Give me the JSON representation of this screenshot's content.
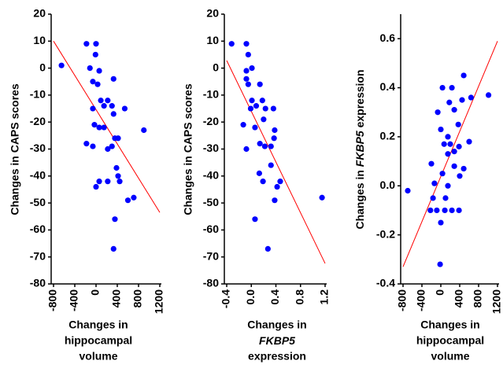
{
  "chart_data": [
    {
      "type": "scatter",
      "ylabel": "Changes in CAPS scores",
      "xlabel": [
        "Changes in",
        "hippocampal",
        "volume"
      ],
      "color": "#0000ff",
      "x": [
        -650,
        -180,
        0,
        -10,
        -115,
        60,
        -60,
        30,
        90,
        220,
        150,
        -60,
        300,
        -30,
        60,
        150,
        330,
        540,
        330,
        900,
        355,
        415,
        220,
        300,
        -180,
        -60,
        385,
        415,
        445,
        60,
        220,
        0,
        710,
        600,
        355,
        330
      ],
      "y": [
        1,
        9,
        9,
        5,
        0,
        -1,
        -5,
        -6,
        -12,
        -12,
        -14,
        -15,
        -14,
        -21,
        -22,
        -22,
        -17,
        -15,
        -4,
        -23,
        -26,
        -26,
        -30,
        -29,
        -28,
        -29,
        -37,
        -40,
        -42,
        -42,
        -42,
        -44,
        -48,
        -49,
        -56,
        -67
      ],
      "xlim": [
        -800,
        1200
      ],
      "xticks": [
        -800,
        -400,
        0,
        400,
        800,
        1200
      ],
      "ylim": [
        -80,
        20
      ],
      "yticks": [
        20,
        10,
        0,
        -10,
        -20,
        -30,
        -40,
        -50,
        -60,
        -70,
        -80
      ],
      "fit_line": {
        "x": [
          -800,
          1200
        ],
        "y": [
          10,
          -53.5
        ],
        "color": "#ff0000"
      }
    },
    {
      "type": "scatter",
      "ylabel": "Changes in CAPS scores",
      "xlabel": [
        "Changes in",
        "FKBP5",
        "expression"
      ],
      "italic": "FKBP5",
      "color": "#0000ff",
      "x": [
        -0.32,
        -0.08,
        -0.05,
        -0.08,
        0.01,
        -0.08,
        -0.05,
        0.14,
        0.01,
        0.18,
        0.08,
        0.23,
        -0.01,
        0.36,
        -0.13,
        0.06,
        0.2,
        0.38,
        0.37,
        0.14,
        0.22,
        0.32,
        -0.08,
        0.32,
        0.13,
        0.19,
        0.47,
        0.42,
        0.38,
        0.06,
        0.27,
        1.15
      ],
      "y": [
        9,
        9,
        5,
        -1,
        0,
        -4,
        -6,
        -6,
        -12,
        -12,
        -14,
        -15,
        -15,
        -15,
        -21,
        -22,
        -19,
        -23,
        -26,
        -28,
        -29,
        -29,
        -30,
        -36,
        -39,
        -42,
        -42,
        -44,
        -49,
        -56,
        -67,
        -48
      ],
      "xlim": [
        -0.4,
        1.2
      ],
      "xticks": [
        -0.4,
        {
          "value": 0,
          "label": "0.0"
        },
        0.4,
        0.8,
        1.2
      ],
      "ylim": [
        -80,
        20
      ],
      "yticks": [
        20,
        10,
        0,
        -10,
        -20,
        -30,
        -40,
        -50,
        -60,
        -70,
        -80
      ],
      "fit_line": {
        "x": [
          -0.4,
          1.2
        ],
        "y": [
          2.8,
          -72.4
        ],
        "color": "#ff0000"
      }
    },
    {
      "type": "scatter",
      "ylabel": "Changes in FKBP5 expression",
      "xlabel": [
        "Changes in",
        "hippocampal",
        "volume"
      ],
      "italic": "FKBP5",
      "color": "#0000ff",
      "x": [
        -700,
        -220,
        -85,
        85,
        235,
        385,
        0,
        -15,
        -165,
        100,
        150,
        -135,
        400,
        485,
        -200,
        35,
        285,
        70,
        200,
        150,
        385,
        285,
        600,
        0,
        150,
        370,
        285,
        -65,
        180,
        35,
        235,
        450,
        485,
        640,
        1010
      ],
      "y": [
        -0.02,
        -0.1,
        -0.1,
        -0.1,
        -0.1,
        -0.1,
        -0.15,
        -0.32,
        -0.05,
        -0.05,
        0,
        0.01,
        0.04,
        0.07,
        0.09,
        0.05,
        0.08,
        0.17,
        0.17,
        0.13,
        0.16,
        0.14,
        0.18,
        0.23,
        0.2,
        0.25,
        0.31,
        0.3,
        0.34,
        0.4,
        0.4,
        0.35,
        0.45,
        0.36,
        0.37
      ],
      "xlim": [
        -800,
        1200
      ],
      "xticks": [
        -800,
        -400,
        0,
        400,
        800,
        1200
      ],
      "ylim": [
        -0.4,
        0.7
      ],
      "yticks": [
        0.6,
        0.4,
        0.2,
        {
          "value": 0,
          "label": "0.0"
        },
        -0.2,
        -0.4
      ],
      "fit_line": {
        "x": [
          -800,
          1200
        ],
        "y": [
          -0.33,
          0.59
        ],
        "color": "#ff0000"
      }
    }
  ]
}
